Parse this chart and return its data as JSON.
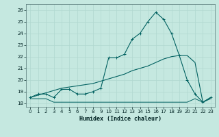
{
  "xlabel": "Humidex (Indice chaleur)",
  "xlim": [
    -0.5,
    23.5
  ],
  "ylim": [
    17.7,
    26.5
  ],
  "yticks": [
    18,
    19,
    20,
    21,
    22,
    23,
    24,
    25,
    26
  ],
  "xticks": [
    0,
    1,
    2,
    3,
    4,
    5,
    6,
    7,
    8,
    9,
    10,
    11,
    12,
    13,
    14,
    15,
    16,
    17,
    18,
    19,
    20,
    21,
    22,
    23
  ],
  "bg_color": "#c5e8e0",
  "line_color": "#006060",
  "grid_color": "#b0d8d0",
  "line_flat_x": [
    0,
    1,
    2,
    3,
    4,
    5,
    6,
    7,
    8,
    9,
    10,
    11,
    12,
    13,
    14,
    15,
    16,
    17,
    18,
    19,
    20,
    21,
    22,
    23
  ],
  "line_flat_y": [
    18.4,
    18.4,
    18.4,
    18.1,
    18.1,
    18.1,
    18.1,
    18.1,
    18.1,
    18.1,
    18.1,
    18.1,
    18.1,
    18.1,
    18.1,
    18.1,
    18.1,
    18.1,
    18.1,
    18.1,
    18.1,
    18.4,
    18.1,
    18.4
  ],
  "line_peak_x": [
    0,
    1,
    2,
    3,
    4,
    5,
    6,
    7,
    8,
    9,
    10,
    11,
    12,
    13,
    14,
    15,
    16,
    17,
    18,
    19,
    20,
    21,
    22,
    23
  ],
  "line_peak_y": [
    18.5,
    18.8,
    18.8,
    18.5,
    19.2,
    19.2,
    18.8,
    18.8,
    19.0,
    19.3,
    21.9,
    21.9,
    22.2,
    23.5,
    24.0,
    25.0,
    25.8,
    25.2,
    24.0,
    22.1,
    20.0,
    18.8,
    18.1,
    18.5
  ],
  "line_trend_x": [
    0,
    1,
    2,
    3,
    4,
    5,
    6,
    7,
    8,
    9,
    10,
    11,
    12,
    13,
    14,
    15,
    16,
    17,
    18,
    19,
    20,
    21,
    22,
    23
  ],
  "line_trend_y": [
    18.5,
    18.7,
    18.9,
    19.1,
    19.3,
    19.4,
    19.5,
    19.6,
    19.7,
    19.9,
    20.1,
    20.3,
    20.5,
    20.8,
    21.0,
    21.2,
    21.5,
    21.8,
    22.0,
    22.1,
    22.1,
    21.5,
    18.1,
    18.5
  ]
}
